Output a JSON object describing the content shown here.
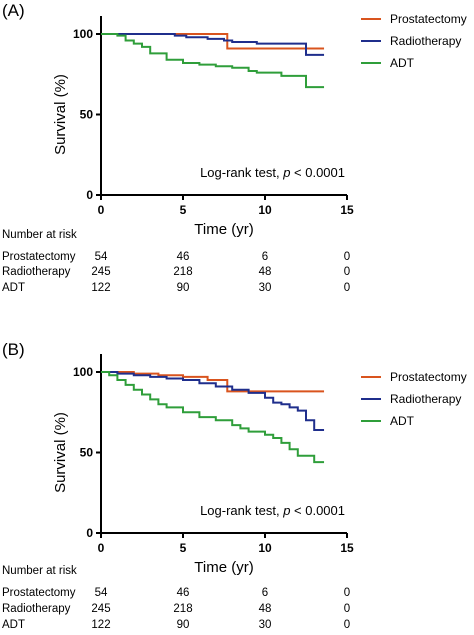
{
  "chart_data": [
    {
      "type": "line",
      "panel_label": "(A)",
      "xlabel": "Time (yr)",
      "ylabel": "Survival (%)",
      "xlim": [
        0,
        15
      ],
      "ylim": [
        0,
        100
      ],
      "xticks": [
        0,
        5,
        10,
        15
      ],
      "yticks": [
        0,
        50,
        100
      ],
      "legend_position": "top-right",
      "annotation": {
        "prefix": "Log-rank test, ",
        "p": "p",
        "suffix": " < 0.0001"
      },
      "series": [
        {
          "name": "Prostatectomy",
          "color": "#d9541e",
          "x": [
            0,
            7.7,
            7.7,
            13.6
          ],
          "y": [
            100,
            100,
            91,
            91
          ]
        },
        {
          "name": "Radiotherapy",
          "color": "#1f2e8c",
          "x": [
            0,
            4.5,
            5.2,
            6.5,
            7.5,
            8.0,
            9.5,
            10.5,
            12.5,
            12.5,
            13.6
          ],
          "y": [
            100,
            99,
            98,
            97,
            96,
            95,
            94,
            94,
            93,
            87,
            87
          ]
        },
        {
          "name": "ADT",
          "color": "#2f9e3a",
          "x": [
            0,
            1,
            1.5,
            2,
            2.5,
            3,
            4,
            5,
            6,
            7,
            8,
            9,
            9.5,
            10,
            11,
            12,
            12.5,
            12.5,
            13.6
          ],
          "y": [
            100,
            99,
            96,
            94,
            92,
            88,
            84,
            82,
            81,
            80,
            79,
            77,
            76,
            76,
            74,
            74,
            74,
            67,
            67
          ]
        }
      ],
      "risk_table": {
        "title": "Number at risk",
        "times": [
          0,
          5,
          10,
          15
        ],
        "rows": [
          {
            "name": "Prostatectomy",
            "values": [
              "54",
              "46",
              "6",
              "0"
            ]
          },
          {
            "name": "Radiotherapy",
            "values": [
              "245",
              "218",
              "48",
              "0"
            ]
          },
          {
            "name": "ADT",
            "values": [
              "122",
              "90",
              "30",
              "0"
            ]
          }
        ]
      }
    },
    {
      "type": "line",
      "panel_label": "(B)",
      "xlabel": "Time (yr)",
      "ylabel": "Survival (%)",
      "xlim": [
        0,
        15
      ],
      "ylim": [
        0,
        100
      ],
      "xticks": [
        0,
        5,
        10,
        15
      ],
      "yticks": [
        0,
        50,
        100
      ],
      "legend_position": "top-right",
      "annotation": {
        "prefix": "Log-rank test, ",
        "p": "p",
        "suffix": " < 0.0001"
      },
      "series": [
        {
          "name": "Prostatectomy",
          "color": "#d9541e",
          "x": [
            0,
            2,
            3.5,
            5,
            6.5,
            7.7,
            7.7,
            13.6
          ],
          "y": [
            100,
            99,
            98,
            97,
            95,
            95,
            88,
            88
          ]
        },
        {
          "name": "Radiotherapy",
          "color": "#1f2e8c",
          "x": [
            0,
            1,
            2,
            3,
            4,
            5,
            6,
            7,
            8,
            9,
            10,
            10.5,
            11,
            11.5,
            12,
            12.5,
            13,
            13.6
          ],
          "y": [
            100,
            99,
            98,
            97,
            96,
            95,
            93,
            91,
            89,
            87,
            84,
            81,
            80,
            78,
            76,
            70,
            64,
            64
          ]
        },
        {
          "name": "ADT",
          "color": "#2f9e3a",
          "x": [
            0,
            0.5,
            1,
            1.5,
            2,
            2.5,
            3,
            3.5,
            4,
            5,
            6,
            7,
            8,
            8.5,
            9,
            10,
            10.5,
            11,
            11.5,
            12,
            12.5,
            13,
            13.6
          ],
          "y": [
            100,
            98,
            95,
            92,
            89,
            86,
            83,
            80,
            78,
            75,
            72,
            70,
            67,
            65,
            63,
            61,
            59,
            56,
            52,
            48,
            48,
            44,
            44
          ]
        }
      ],
      "risk_table": {
        "title": "Number at risk",
        "times": [
          0,
          5,
          10,
          15
        ],
        "rows": [
          {
            "name": "Prostatectomy",
            "values": [
              "54",
              "46",
              "6",
              "0"
            ]
          },
          {
            "name": "Radiotherapy",
            "values": [
              "245",
              "218",
              "48",
              "0"
            ]
          },
          {
            "name": "ADT",
            "values": [
              "122",
              "90",
              "30",
              "0"
            ]
          }
        ]
      }
    }
  ]
}
